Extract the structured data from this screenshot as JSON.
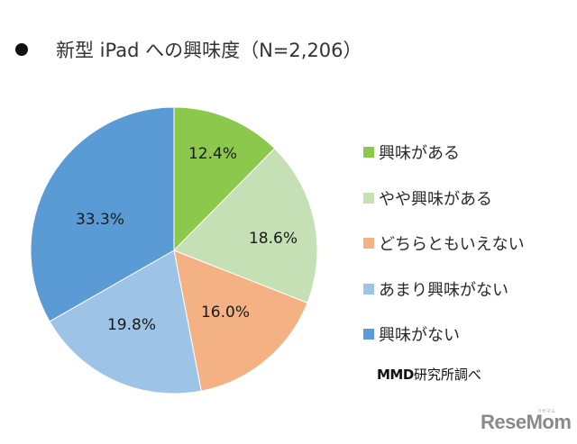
{
  "title": {
    "bullet": "●",
    "text": "新型 iPad への興味度（N=2,206）"
  },
  "chart_data": {
    "type": "pie",
    "title": "新型 iPad への興味度（N=2,206）",
    "sample_size": "N=2,206",
    "unit": "%",
    "start_angle_deg": 0,
    "direction": "clockwise",
    "categories": [
      "興味がある",
      "やや興味がある",
      "どちらともいえない",
      "あまり興味がない",
      "興味がない"
    ],
    "values": [
      12.4,
      18.6,
      16.0,
      19.8,
      33.3
    ],
    "data_labels": [
      "12.4%",
      "18.6%",
      "16.0%",
      "19.8%",
      "33.3%"
    ],
    "colors": [
      "#8cc84b",
      "#c5e0b4",
      "#f4b183",
      "#9dc3e6",
      "#5b9bd5"
    ],
    "legend_position": "right"
  },
  "legend": {
    "items": [
      {
        "label": "興味がある",
        "color": "#8cc84b"
      },
      {
        "label": "やや興味がある",
        "color": "#c5e0b4"
      },
      {
        "label": "どちらともいえない",
        "color": "#f4b183"
      },
      {
        "label": "あまり興味がない",
        "color": "#9dc3e6"
      },
      {
        "label": "興味がない",
        "color": "#5b9bd5"
      }
    ]
  },
  "source": {
    "brand": "MMD",
    "text": "研究所調べ"
  },
  "watermark": {
    "text": "ReseMom",
    "ruby": "リセマム"
  }
}
